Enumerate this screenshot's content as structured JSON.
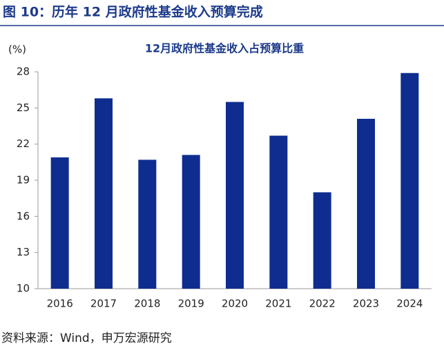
{
  "header": "图 10：历年 12 月政府性基金收入预算完成",
  "source": "资料来源：Wind，申万宏源研究",
  "chart_data": {
    "type": "bar",
    "title": "12月政府性基金收入占预算比重",
    "y_label": "(%)",
    "categories": [
      "2016",
      "2017",
      "2018",
      "2019",
      "2020",
      "2021",
      "2022",
      "2023",
      "2024"
    ],
    "values": [
      20.9,
      25.8,
      20.7,
      21.1,
      25.5,
      22.7,
      18.0,
      24.1,
      27.9
    ],
    "color": "#0e2d8f",
    "ylim": [
      10,
      28
    ],
    "yticks": [
      10,
      13,
      16,
      19,
      22,
      25,
      28
    ],
    "grid": false
  }
}
